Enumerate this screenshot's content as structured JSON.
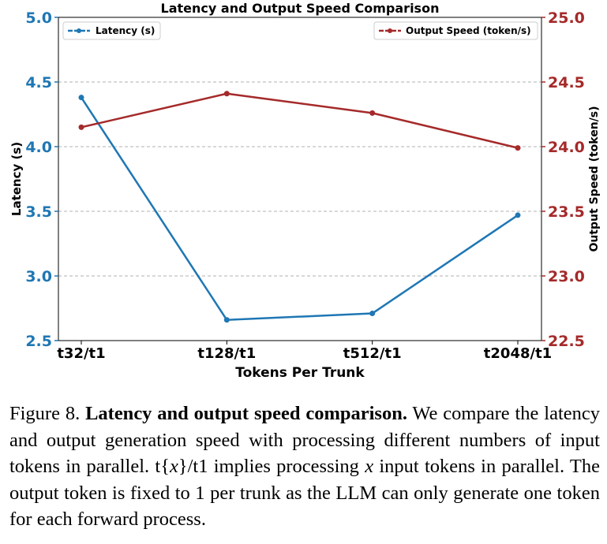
{
  "chart_data": {
    "type": "line",
    "title": "Latency and Output Speed Comparison",
    "xlabel": "Tokens Per Trunk",
    "ylabel_left": "Latency (s)",
    "ylabel_right": "Output Speed (token/s)",
    "categories": [
      "t32/t1",
      "t128/t1",
      "t512/t1",
      "t2048/t1"
    ],
    "ylim_left": [
      2.5,
      5.0
    ],
    "ylim_right": [
      22.5,
      25.0
    ],
    "yticks_left": [
      "2.5",
      "3.0",
      "3.5",
      "4.0",
      "4.5",
      "5.0"
    ],
    "yticks_right": [
      "22.5",
      "23.0",
      "23.5",
      "24.0",
      "24.5",
      "25.0"
    ],
    "grid": "horizontal dashed",
    "series": [
      {
        "name": "Latency (s)",
        "axis": "left",
        "color": "#1f77b4",
        "legend_position": "top-left",
        "values": [
          4.38,
          2.66,
          2.71,
          3.47
        ]
      },
      {
        "name": "Output Speed (token/s)",
        "axis": "right",
        "color": "#a52a2a",
        "legend_position": "top-right",
        "values": [
          24.15,
          24.41,
          24.26,
          23.99
        ]
      }
    ]
  },
  "caption": {
    "label": "Figure 8.",
    "title": "Latency and output speed comparison.",
    "text_part1": "We compare the latency and output generation speed with processing different numbers of input tokens in parallel. t{",
    "math_x": "x",
    "text_part2": "}/t1 implies processing ",
    "math_x2": "x",
    "text_part3": " input tokens in parallel. The output token is fixed to 1 per trunk as the LLM can only generate one token for each forward process."
  }
}
